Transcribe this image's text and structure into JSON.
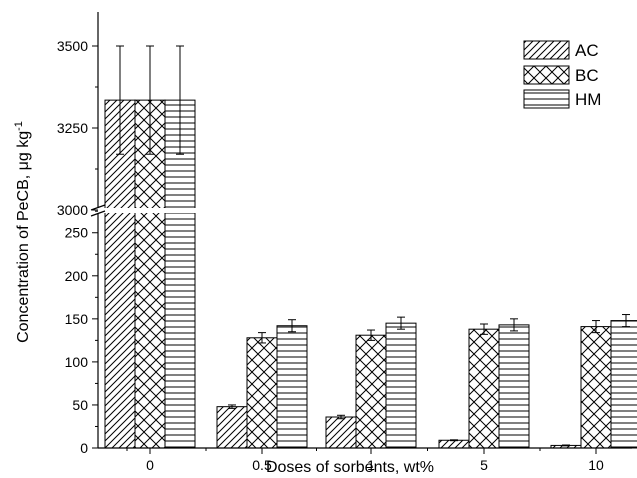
{
  "chart_data": {
    "type": "bar",
    "title": "",
    "xlabel": "Doses of sorbents, wt%",
    "ylabel": "Concentration of PeCB, μg kg",
    "ylabel_superscript": "-1",
    "categories": [
      "0",
      "0.5",
      "1",
      "5",
      "10"
    ],
    "series": [
      {
        "name": "AC",
        "pattern": "diagonal-hatch",
        "values": [
          3335,
          48,
          36,
          9,
          3
        ],
        "errors": [
          165,
          2,
          2,
          0.5,
          0.5
        ]
      },
      {
        "name": "BC",
        "pattern": "cross-hatch",
        "values": [
          3335,
          128,
          131,
          138,
          141
        ],
        "errors": [
          165,
          6,
          6,
          6,
          7
        ]
      },
      {
        "name": "HM",
        "pattern": "horizontal-lines",
        "values": [
          3335,
          142,
          145,
          143,
          148
        ],
        "errors": [
          165,
          7,
          7,
          7,
          7
        ]
      }
    ],
    "y_axis_break": {
      "lower_range": [
        0,
        295
      ],
      "upper_range": [
        3000,
        3600
      ],
      "lower_ticks": [
        0,
        50,
        100,
        150,
        200,
        250
      ],
      "upper_ticks": [
        3000,
        3250,
        3500
      ]
    },
    "legend_position": "top-right",
    "grid": false
  },
  "colors": {
    "ink": "#000000",
    "background": "#ffffff"
  }
}
